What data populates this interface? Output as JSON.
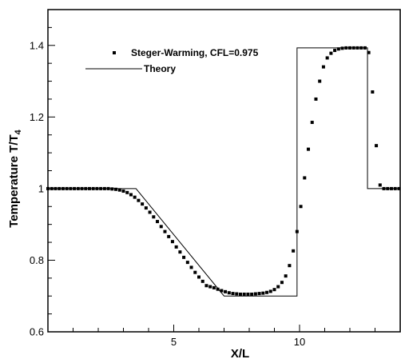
{
  "chart_data": {
    "type": "line",
    "xlabel": "X/L",
    "ylabel_main": "Temperature T/T",
    "ylabel_sub": "4",
    "xlim": [
      0,
      14
    ],
    "ylim": [
      0.6,
      1.5
    ],
    "x_ticks": [
      5,
      10
    ],
    "x_minor_step": 1,
    "y_ticks": [
      0.6,
      0.8,
      1,
      1.2,
      1.4
    ],
    "y_tick_labels": [
      "0.6",
      "0.8",
      "1",
      "1.2",
      "1.4"
    ],
    "y_minor_step": 0.05,
    "grid": false,
    "legend_position": "top-left",
    "series": [
      {
        "name": "Steger-Warming, CFL=0.975",
        "style": "markers",
        "color": "#000000",
        "points": [
          [
            0.0,
            1.0
          ],
          [
            0.15,
            1.0
          ],
          [
            0.3,
            1.0
          ],
          [
            0.45,
            1.0
          ],
          [
            0.6,
            1.0
          ],
          [
            0.75,
            1.0
          ],
          [
            0.9,
            1.0
          ],
          [
            1.05,
            1.0
          ],
          [
            1.2,
            1.0
          ],
          [
            1.35,
            1.0
          ],
          [
            1.5,
            1.0
          ],
          [
            1.65,
            1.0
          ],
          [
            1.8,
            1.0
          ],
          [
            1.95,
            1.0
          ],
          [
            2.1,
            1.0
          ],
          [
            2.25,
            1.0
          ],
          [
            2.4,
            1.0
          ],
          [
            2.55,
            0.999
          ],
          [
            2.7,
            0.998
          ],
          [
            2.85,
            0.996
          ],
          [
            3.0,
            0.993
          ],
          [
            3.15,
            0.989
          ],
          [
            3.3,
            0.983
          ],
          [
            3.45,
            0.976
          ],
          [
            3.6,
            0.967
          ],
          [
            3.75,
            0.957
          ],
          [
            3.9,
            0.946
          ],
          [
            4.05,
            0.934
          ],
          [
            4.2,
            0.921
          ],
          [
            4.35,
            0.908
          ],
          [
            4.5,
            0.894
          ],
          [
            4.65,
            0.88
          ],
          [
            4.8,
            0.866
          ],
          [
            4.95,
            0.852
          ],
          [
            5.1,
            0.837
          ],
          [
            5.25,
            0.823
          ],
          [
            5.4,
            0.808
          ],
          [
            5.55,
            0.794
          ],
          [
            5.7,
            0.78
          ],
          [
            5.85,
            0.766
          ],
          [
            6.0,
            0.753
          ],
          [
            6.15,
            0.741
          ],
          [
            6.3,
            0.729
          ],
          [
            6.45,
            0.726
          ],
          [
            6.6,
            0.723
          ],
          [
            6.75,
            0.719
          ],
          [
            6.9,
            0.715
          ],
          [
            7.05,
            0.712
          ],
          [
            7.2,
            0.709
          ],
          [
            7.35,
            0.707
          ],
          [
            7.5,
            0.706
          ],
          [
            7.65,
            0.705
          ],
          [
            7.8,
            0.705
          ],
          [
            7.95,
            0.705
          ],
          [
            8.1,
            0.705
          ],
          [
            8.25,
            0.706
          ],
          [
            8.4,
            0.707
          ],
          [
            8.55,
            0.708
          ],
          [
            8.7,
            0.71
          ],
          [
            8.85,
            0.713
          ],
          [
            9.0,
            0.718
          ],
          [
            9.15,
            0.726
          ],
          [
            9.3,
            0.738
          ],
          [
            9.45,
            0.756
          ],
          [
            9.6,
            0.785
          ],
          [
            9.75,
            0.826
          ],
          [
            9.9,
            0.88
          ],
          [
            10.05,
            0.95
          ],
          [
            10.2,
            1.03
          ],
          [
            10.35,
            1.11
          ],
          [
            10.5,
            1.185
          ],
          [
            10.65,
            1.25
          ],
          [
            10.8,
            1.3
          ],
          [
            10.95,
            1.34
          ],
          [
            11.1,
            1.365
          ],
          [
            11.25,
            1.378
          ],
          [
            11.4,
            1.386
          ],
          [
            11.55,
            1.39
          ],
          [
            11.7,
            1.392
          ],
          [
            11.85,
            1.393
          ],
          [
            12.0,
            1.393
          ],
          [
            12.15,
            1.393
          ],
          [
            12.3,
            1.393
          ],
          [
            12.45,
            1.393
          ],
          [
            12.6,
            1.393
          ],
          [
            12.75,
            1.38
          ],
          [
            12.9,
            1.27
          ],
          [
            13.05,
            1.12
          ],
          [
            13.2,
            1.01
          ],
          [
            13.35,
            1.0
          ],
          [
            13.5,
            1.0
          ],
          [
            13.65,
            1.0
          ],
          [
            13.8,
            1.0
          ],
          [
            13.95,
            1.0
          ]
        ]
      },
      {
        "name": "Theory",
        "style": "line",
        "color": "#000000",
        "points": [
          [
            0.0,
            1.0
          ],
          [
            3.5,
            1.0
          ],
          [
            7.0,
            0.7
          ],
          [
            9.9,
            0.7
          ],
          [
            9.9,
            1.393
          ],
          [
            12.7,
            1.393
          ],
          [
            12.7,
            1.0
          ],
          [
            14.0,
            1.0
          ]
        ]
      }
    ]
  }
}
